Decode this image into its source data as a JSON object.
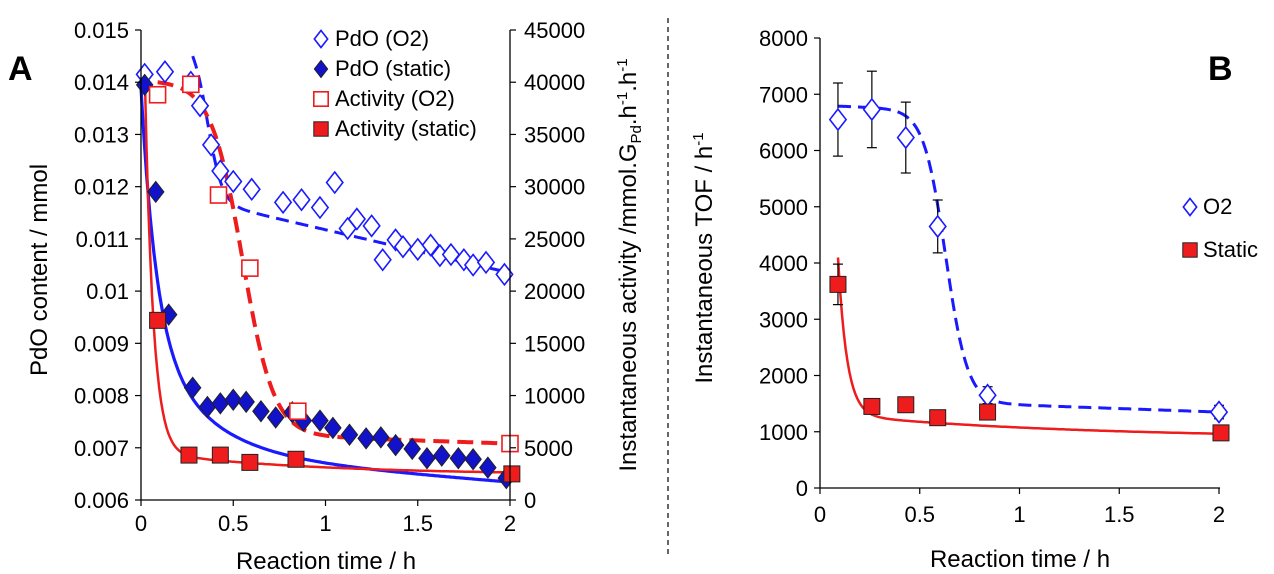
{
  "colors": {
    "blue": "#1a1aff",
    "blue_dark": "#1212c8",
    "red": "#ee1c1c",
    "black": "#000000"
  },
  "chart_data": [
    {
      "panel_label": "A",
      "type": "scatter",
      "xlabel": "Reaction time / h",
      "ylabel": "PdO content / mmol",
      "y2label_main": "Instantaneous activity /mmol.G",
      "y2label_sub1": "Pd",
      "y2label_mid": ".h",
      "y2label_sup": "-1",
      "y2label_end": ".h",
      "y2label_sup2": "-1",
      "xlim": [
        0,
        2
      ],
      "xticks": [
        0,
        0.5,
        1,
        1.5,
        2
      ],
      "xtick_labels": [
        "0",
        "0.5",
        "1",
        "1.5",
        "2"
      ],
      "ylim": [
        0.006,
        0.015
      ],
      "yticks": [
        0.006,
        0.007,
        0.008,
        0.009,
        0.01,
        0.011,
        0.012,
        0.013,
        0.014,
        0.015
      ],
      "ytick_labels": [
        "0.006",
        "0.007",
        "0.008",
        "0.009",
        "0.01",
        "0.011",
        "0.012",
        "0.013",
        "0.014",
        "0.015"
      ],
      "y2lim": [
        0,
        45000
      ],
      "y2ticks": [
        0,
        5000,
        10000,
        15000,
        20000,
        25000,
        30000,
        35000,
        40000,
        45000
      ],
      "y2tick_labels": [
        "0",
        "5000",
        "10000",
        "15000",
        "20000",
        "25000",
        "30000",
        "35000",
        "40000",
        "45000"
      ],
      "grid": false,
      "legend_position": "top-right",
      "series": [
        {
          "name": "PdO (O2)",
          "axis": "left",
          "marker": "diamond-open",
          "color": "#1a1aff",
          "x": [
            0.02,
            0.13,
            0.27,
            0.32,
            0.38,
            0.43,
            0.5,
            0.6,
            0.77,
            0.87,
            0.97,
            1.05,
            1.12,
            1.17,
            1.25,
            1.31,
            1.38,
            1.42,
            1.5,
            1.57,
            1.62,
            1.68,
            1.75,
            1.8,
            1.87,
            1.97
          ],
          "y": [
            0.01415,
            0.0142,
            0.014,
            0.01355,
            0.0128,
            0.0123,
            0.0121,
            0.01195,
            0.0117,
            0.01175,
            0.0116,
            0.01208,
            0.0112,
            0.01138,
            0.01125,
            0.0106,
            0.01098,
            0.01085,
            0.0108,
            0.01088,
            0.01068,
            0.0107,
            0.0106,
            0.0105,
            0.01055,
            0.01032
          ]
        },
        {
          "name": "PdO (static)",
          "axis": "left",
          "marker": "diamond-filled",
          "color": "#1212c8",
          "x": [
            0.02,
            0.08,
            0.15,
            0.28,
            0.36,
            0.43,
            0.5,
            0.57,
            0.65,
            0.73,
            0.82,
            0.88,
            0.97,
            1.04,
            1.13,
            1.22,
            1.3,
            1.38,
            1.47,
            1.55,
            1.63,
            1.72,
            1.8,
            1.88,
            1.98
          ],
          "y": [
            0.01395,
            0.0119,
            0.00955,
            0.00815,
            0.00778,
            0.00785,
            0.00792,
            0.00788,
            0.0077,
            0.00758,
            0.00768,
            0.00752,
            0.00752,
            0.00738,
            0.00725,
            0.00718,
            0.0072,
            0.00705,
            0.00698,
            0.0068,
            0.00685,
            0.0068,
            0.00678,
            0.00662,
            0.00642
          ]
        },
        {
          "name": "Activity (O2)",
          "axis": "right",
          "marker": "square-open",
          "color": "#ee1c1c",
          "x": [
            0.09,
            0.27,
            0.42,
            0.59,
            0.85,
            2.0
          ],
          "y": [
            38800,
            39800,
            29200,
            22200,
            8500,
            5400
          ]
        },
        {
          "name": "Activity (static)",
          "axis": "right",
          "marker": "square-filled",
          "color": "#ee1c1c",
          "x": [
            0.09,
            0.26,
            0.43,
            0.59,
            0.84,
            2.01
          ],
          "y": [
            17200,
            4300,
            4300,
            3600,
            3900,
            2500
          ]
        }
      ]
    },
    {
      "panel_label": "B",
      "type": "scatter",
      "xlabel": "Reaction time / h",
      "ylabel_main": "Instantaneous TOF / h",
      "ylabel_sup": "-1",
      "xlim": [
        0,
        2
      ],
      "xticks": [
        0,
        0.5,
        1,
        1.5,
        2
      ],
      "xtick_labels": [
        "0",
        "0.5",
        "1",
        "1.5",
        "2"
      ],
      "ylim": [
        0,
        8000
      ],
      "yticks": [
        0,
        1000,
        2000,
        3000,
        4000,
        5000,
        6000,
        7000,
        8000
      ],
      "ytick_labels": [
        "0",
        "1000",
        "2000",
        "3000",
        "4000",
        "5000",
        "6000",
        "7000",
        "8000"
      ],
      "grid": false,
      "legend_position": "right",
      "series": [
        {
          "name": "O2",
          "marker": "diamond-open",
          "color": "#1a1aff",
          "x": [
            0.09,
            0.26,
            0.43,
            0.59,
            0.84,
            2.0
          ],
          "y": [
            6550,
            6730,
            6230,
            4650,
            1650,
            1350
          ],
          "error": [
            650,
            680,
            630,
            470,
            150,
            120
          ]
        },
        {
          "name": "Static",
          "marker": "square-filled",
          "color": "#ee1c1c",
          "x": [
            0.09,
            0.26,
            0.43,
            0.59,
            0.84,
            2.01
          ],
          "y": [
            3620,
            1450,
            1480,
            1250,
            1350,
            980
          ],
          "error": [
            360,
            130,
            130,
            110,
            120,
            90
          ]
        }
      ]
    }
  ]
}
